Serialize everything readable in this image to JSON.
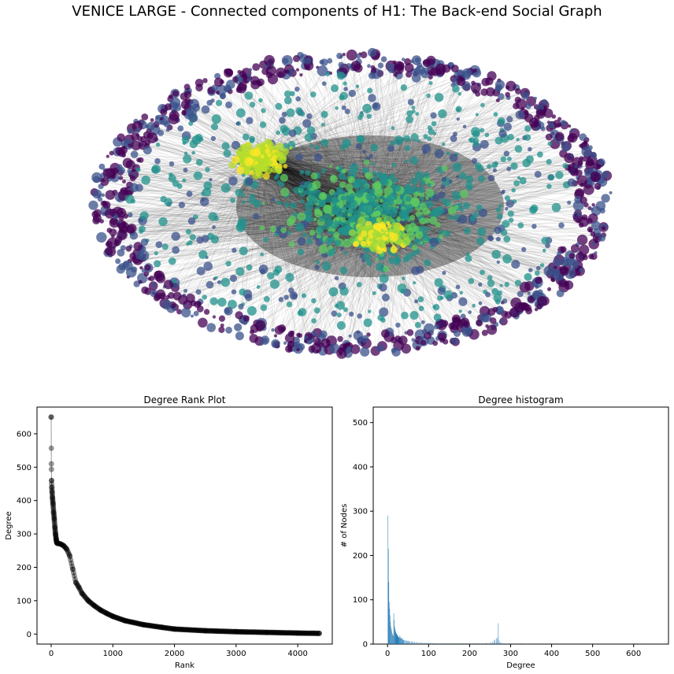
{
  "figure": {
    "suptitle": "VENICE LARGE - Connected components of H1: The Back-end Social Graph"
  },
  "network": {
    "colormap": [
      "#440154",
      "#3b528b",
      "#21918c",
      "#5ec962",
      "#fde725"
    ],
    "edge_color": "#000000",
    "node_alpha": 0.75
  },
  "chart_data": [
    {
      "type": "scatter",
      "title": "Degree Rank Plot",
      "xlabel": "Rank",
      "ylabel": "Degree",
      "xlim": [
        -230,
        4560
      ],
      "ylim": [
        -30,
        680
      ],
      "xticks": [
        0,
        1000,
        2000,
        3000,
        4000
      ],
      "yticks": [
        0,
        100,
        200,
        300,
        400,
        500,
        600
      ],
      "marker_color": "#000000",
      "curve": [
        [
          0,
          650
        ],
        [
          3,
          510
        ],
        [
          6,
          460
        ],
        [
          10,
          440
        ],
        [
          15,
          425
        ],
        [
          20,
          410
        ],
        [
          30,
          390
        ],
        [
          40,
          365
        ],
        [
          50,
          345
        ],
        [
          60,
          320
        ],
        [
          70,
          300
        ],
        [
          80,
          285
        ],
        [
          90,
          275
        ],
        [
          100,
          272
        ],
        [
          150,
          270
        ],
        [
          200,
          265
        ],
        [
          250,
          255
        ],
        [
          300,
          235
        ],
        [
          350,
          195
        ],
        [
          400,
          155
        ],
        [
          450,
          140
        ],
        [
          500,
          122
        ],
        [
          600,
          100
        ],
        [
          700,
          85
        ],
        [
          800,
          72
        ],
        [
          900,
          62
        ],
        [
          1000,
          53
        ],
        [
          1200,
          40
        ],
        [
          1500,
          28
        ],
        [
          1800,
          20
        ],
        [
          2000,
          15
        ],
        [
          2500,
          10
        ],
        [
          3000,
          7
        ],
        [
          3500,
          5
        ],
        [
          4000,
          3
        ],
        [
          4350,
          2
        ]
      ]
    },
    {
      "type": "bar",
      "title": "Degree histogram",
      "xlabel": "Degree",
      "ylabel": "# of Nodes",
      "xlim": [
        -35,
        685
      ],
      "ylim": [
        0,
        535
      ],
      "xticks": [
        0,
        100,
        200,
        300,
        400,
        500,
        600
      ],
      "yticks": [
        0,
        100,
        200,
        300,
        400,
        500
      ],
      "bar_color": "#1f77b4",
      "bars": [
        [
          1,
          290
        ],
        [
          2,
          215
        ],
        [
          3,
          140
        ],
        [
          4,
          95
        ],
        [
          5,
          80
        ],
        [
          6,
          65
        ],
        [
          7,
          50
        ],
        [
          8,
          40
        ],
        [
          9,
          35
        ],
        [
          10,
          30
        ],
        [
          11,
          25
        ],
        [
          12,
          22
        ],
        [
          13,
          20
        ],
        [
          14,
          18
        ],
        [
          15,
          70
        ],
        [
          16,
          55
        ],
        [
          17,
          40
        ],
        [
          18,
          35
        ],
        [
          19,
          30
        ],
        [
          20,
          28
        ],
        [
          21,
          25
        ],
        [
          22,
          23
        ],
        [
          23,
          20
        ],
        [
          24,
          22
        ],
        [
          25,
          18
        ],
        [
          26,
          17
        ],
        [
          27,
          16
        ],
        [
          28,
          15
        ],
        [
          29,
          14
        ],
        [
          30,
          20
        ],
        [
          31,
          15
        ],
        [
          32,
          14
        ],
        [
          33,
          13
        ],
        [
          34,
          12
        ],
        [
          35,
          14
        ],
        [
          36,
          11
        ],
        [
          37,
          10
        ],
        [
          38,
          10
        ],
        [
          39,
          9
        ],
        [
          40,
          9
        ],
        [
          42,
          8
        ],
        [
          44,
          8
        ],
        [
          46,
          8
        ],
        [
          48,
          7
        ],
        [
          50,
          7
        ],
        [
          52,
          7
        ],
        [
          55,
          6
        ],
        [
          58,
          6
        ],
        [
          60,
          6
        ],
        [
          63,
          5
        ],
        [
          66,
          5
        ],
        [
          70,
          5
        ],
        [
          74,
          4
        ],
        [
          78,
          4
        ],
        [
          82,
          4
        ],
        [
          86,
          3
        ],
        [
          90,
          3
        ],
        [
          95,
          3
        ],
        [
          100,
          3
        ],
        [
          105,
          3
        ],
        [
          110,
          2
        ],
        [
          115,
          2
        ],
        [
          120,
          2
        ],
        [
          130,
          2
        ],
        [
          140,
          2
        ],
        [
          150,
          2
        ],
        [
          160,
          2
        ],
        [
          170,
          2
        ],
        [
          180,
          2
        ],
        [
          190,
          2
        ],
        [
          200,
          2
        ],
        [
          210,
          2
        ],
        [
          220,
          2
        ],
        [
          230,
          2
        ],
        [
          240,
          3
        ],
        [
          250,
          4
        ],
        [
          255,
          6
        ],
        [
          260,
          8
        ],
        [
          262,
          10
        ],
        [
          265,
          12
        ],
        [
          268,
          15
        ],
        [
          270,
          47
        ],
        [
          272,
          8
        ],
        [
          275,
          4
        ],
        [
          280,
          2
        ],
        [
          290,
          1
        ],
        [
          300,
          1
        ],
        [
          320,
          1
        ],
        [
          340,
          1
        ],
        [
          360,
          1
        ],
        [
          380,
          1
        ],
        [
          400,
          1
        ],
        [
          420,
          1
        ],
        [
          450,
          1
        ],
        [
          460,
          1
        ],
        [
          510,
          1
        ],
        [
          650,
          1
        ]
      ]
    }
  ]
}
